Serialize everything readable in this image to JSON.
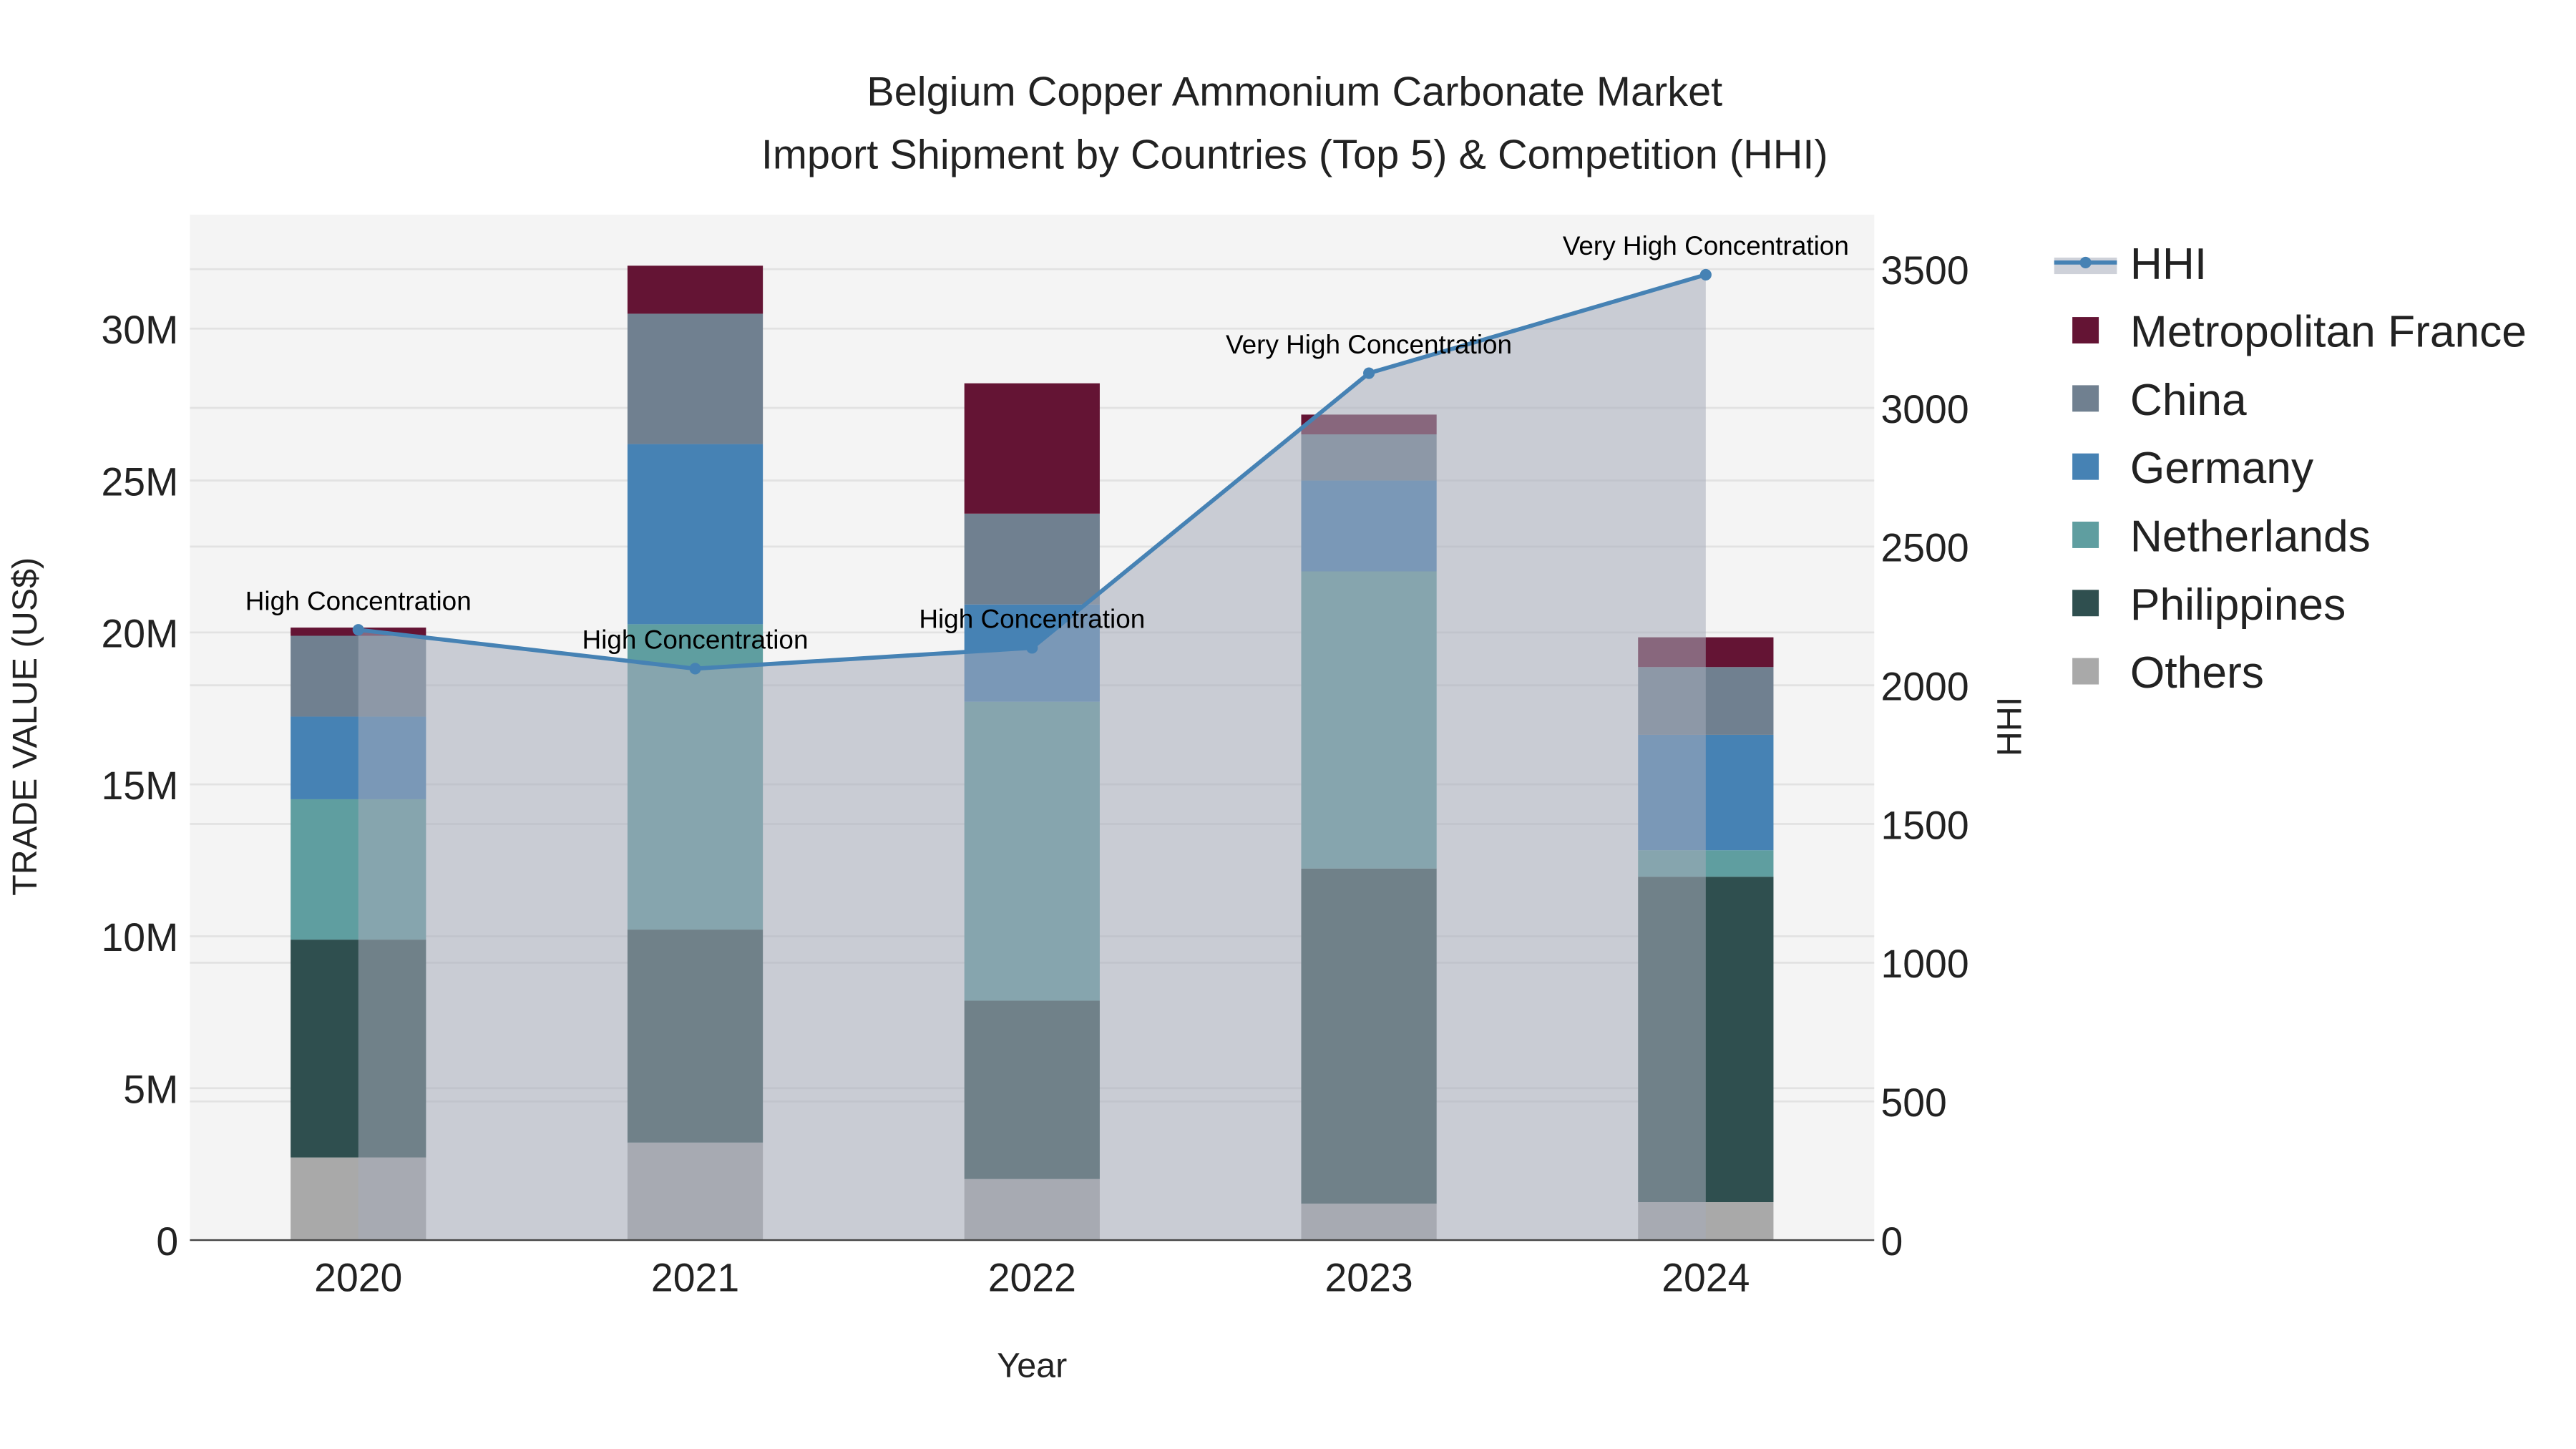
{
  "chart_data": {
    "type": "bar",
    "stacked": true,
    "title": "Belgium Copper Ammonium Carbonate Market",
    "subtitle": "Import Shipment by Countries (Top 5) & Competition (HHI)",
    "xlabel": "Year",
    "ylabel": "TRADE VALUE (US$)",
    "y2label": "HHI",
    "categories": [
      "2020",
      "2021",
      "2022",
      "2023",
      "2024"
    ],
    "ylim": [
      0,
      33000000
    ],
    "y2lim": [
      0,
      3700
    ],
    "yticks": [
      {
        "v": 0,
        "label": "0"
      },
      {
        "v": 5000000,
        "label": "5M"
      },
      {
        "v": 10000000,
        "label": "10M"
      },
      {
        "v": 15000000,
        "label": "15M"
      },
      {
        "v": 20000000,
        "label": "20M"
      },
      {
        "v": 25000000,
        "label": "25M"
      },
      {
        "v": 30000000,
        "label": "30M"
      }
    ],
    "y2ticks": [
      {
        "v": 0,
        "label": "0"
      },
      {
        "v": 500,
        "label": "500"
      },
      {
        "v": 1000,
        "label": "1000"
      },
      {
        "v": 1500,
        "label": "1500"
      },
      {
        "v": 2000,
        "label": "2000"
      },
      {
        "v": 2500,
        "label": "2500"
      },
      {
        "v": 3000,
        "label": "3000"
      },
      {
        "v": 3500,
        "label": "3500"
      }
    ],
    "grid": true,
    "legend_placement": "right",
    "series": [
      {
        "name": "Others",
        "color": "#a9a9a9",
        "values": [
          2.72,
          3.21,
          2.01,
          1.2,
          1.25
        ]
      },
      {
        "name": "Philippines",
        "color": "#2f4f4f",
        "values": [
          7.17,
          7.01,
          5.87,
          11.03,
          10.71
        ]
      },
      {
        "name": "Netherlands",
        "color": "#5f9ea0",
        "values": [
          4.62,
          10.05,
          9.84,
          9.78,
          0.87
        ]
      },
      {
        "name": "Germany",
        "color": "#4682b4",
        "values": [
          2.72,
          5.93,
          3.2,
          2.99,
          3.8
        ]
      },
      {
        "name": "China",
        "color": "#708090",
        "values": [
          2.66,
          4.29,
          2.99,
          1.52,
          2.23
        ]
      },
      {
        "name": "Metropolitan France",
        "color": "#641434",
        "values": [
          0.27,
          1.58,
          4.29,
          0.65,
          0.98
        ]
      }
    ],
    "value_unit": "million US$",
    "hhi": {
      "name": "HHI",
      "color": "#4682b4",
      "values": [
        2200,
        2060,
        2135,
        3125,
        3480
      ],
      "annotations": [
        "High Concentration",
        "High Concentration",
        "High Concentration",
        "Very High Concentration",
        "Very High Concentration"
      ]
    }
  }
}
